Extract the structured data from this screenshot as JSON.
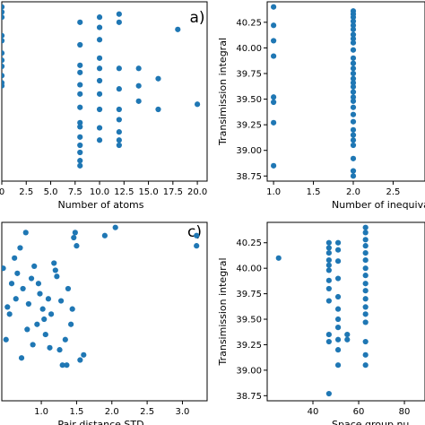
{
  "chart_data": [
    {
      "type": "scatter",
      "panel_label": "a)",
      "xlabel": "Number of atoms",
      "ylabel": "",
      "xlim": [
        0,
        21
      ],
      "ylim": [
        38.7,
        40.45
      ],
      "xticks": [
        "0",
        "2.5",
        "5.0",
        "7.5",
        "10.0",
        "12.5",
        "15.0",
        "17.5",
        "20.0"
      ],
      "yticks": [],
      "marker_color": "#1f77b4",
      "x": [
        0,
        0,
        0,
        0,
        0,
        0,
        0,
        0,
        0,
        0,
        0,
        8,
        8,
        8,
        8,
        8,
        8,
        8,
        8,
        8,
        8,
        8,
        8,
        8,
        8,
        10,
        10,
        10,
        10,
        10,
        10,
        10,
        10,
        10,
        10,
        12,
        12,
        12,
        12,
        12,
        12,
        12,
        12,
        12,
        14,
        14,
        14,
        16,
        16,
        18,
        20
      ],
      "y": [
        40.4,
        40.35,
        40.3,
        40.12,
        40.07,
        39.95,
        39.88,
        39.82,
        39.73,
        39.66,
        39.63,
        40.25,
        40.03,
        39.83,
        39.76,
        39.64,
        39.55,
        39.42,
        39.27,
        39.23,
        39.13,
        39.05,
        38.98,
        38.85,
        38.9,
        40.3,
        40.2,
        40.08,
        39.9,
        39.8,
        39.68,
        39.55,
        39.4,
        39.22,
        39.1,
        40.33,
        40.25,
        39.8,
        39.6,
        39.4,
        39.3,
        39.18,
        39.1,
        39.05,
        39.8,
        39.63,
        39.48,
        39.7,
        39.4,
        40.18,
        39.45
      ]
    },
    {
      "type": "scatter",
      "panel_label": "",
      "xlabel": "Number of inequival",
      "ylabel": "Transimission integral",
      "xlim": [
        0.92,
        2.9
      ],
      "ylim": [
        38.7,
        40.45
      ],
      "xticks": [
        "1.0",
        "1.5",
        "2.0",
        "2.5"
      ],
      "yticks": [
        "38.75",
        "39.00",
        "39.25",
        "39.50",
        "39.75",
        "40.00",
        "40.25"
      ],
      "marker_color": "#1f77b4",
      "x": [
        1,
        1,
        1,
        1,
        1,
        1,
        1,
        1,
        2,
        2,
        2,
        2,
        2,
        2,
        2,
        2,
        2,
        2,
        2,
        2,
        2,
        2,
        2,
        2,
        2,
        2,
        2,
        2,
        2,
        2,
        2,
        2,
        2,
        2,
        2,
        2,
        2,
        2
      ],
      "y": [
        40.4,
        40.22,
        40.07,
        39.92,
        39.52,
        39.47,
        39.27,
        38.85,
        40.36,
        40.33,
        40.3,
        40.26,
        40.22,
        40.18,
        40.13,
        40.09,
        40.05,
        39.98,
        39.9,
        39.85,
        39.8,
        39.75,
        39.7,
        39.66,
        39.62,
        39.57,
        39.52,
        39.48,
        39.42,
        39.35,
        39.28,
        39.2,
        39.15,
        39.1,
        39.05,
        38.92,
        38.8,
        38.75
      ]
    },
    {
      "type": "scatter",
      "panel_label": "c)",
      "xlabel": "Pair distance STD",
      "ylabel": "",
      "xlim": [
        0.44,
        3.35
      ],
      "ylim": [
        38.7,
        40.45
      ],
      "xticks": [
        "1.0",
        "1.5",
        "2.0",
        "2.5",
        "3.0"
      ],
      "yticks": [],
      "marker_color": "#1f77b4",
      "x": [
        0.46,
        0.52,
        0.58,
        0.62,
        0.66,
        0.7,
        0.74,
        0.78,
        0.82,
        0.86,
        0.9,
        0.94,
        0.98,
        1.02,
        1.06,
        1.1,
        1.14,
        1.18,
        1.22,
        1.26,
        1.3,
        1.34,
        1.38,
        1.42,
        1.46,
        1.5,
        1.55,
        1.6,
        0.5,
        0.55,
        0.64,
        0.72,
        0.8,
        0.88,
        0.96,
        1.04,
        1.12,
        1.2,
        1.28,
        1.36,
        1.44,
        1.48,
        1.9,
        2.05,
        3.2,
        3.2
      ],
      "y": [
        40.0,
        39.62,
        39.85,
        40.1,
        39.95,
        40.2,
        39.8,
        40.35,
        39.65,
        39.9,
        40.02,
        39.45,
        39.75,
        39.6,
        39.35,
        39.7,
        39.55,
        40.05,
        39.92,
        39.2,
        39.05,
        39.3,
        39.8,
        39.45,
        40.3,
        40.22,
        39.1,
        39.15,
        39.3,
        39.55,
        39.7,
        39.12,
        39.4,
        39.25,
        39.85,
        39.5,
        39.22,
        39.98,
        39.68,
        39.05,
        39.6,
        40.35,
        40.32,
        40.4,
        40.32,
        40.22
      ]
    },
    {
      "type": "scatter",
      "panel_label": "",
      "xlabel": "Space group nu",
      "ylabel": "Transimission integral",
      "xlim": [
        20,
        89
      ],
      "ylim": [
        38.7,
        40.45
      ],
      "xticks": [
        "40",
        "60",
        "80"
      ],
      "yticks": [
        "38.75",
        "39.00",
        "39.25",
        "39.50",
        "39.75",
        "40.00",
        "40.25"
      ],
      "marker_color": "#1f77b4",
      "x": [
        25,
        47,
        47,
        47,
        47,
        47,
        47,
        47,
        47,
        47,
        47,
        47,
        47,
        51,
        51,
        51,
        51,
        51,
        51,
        51,
        51,
        51,
        51,
        51,
        55,
        55,
        63,
        63,
        63,
        63,
        63,
        63,
        63,
        63,
        63,
        63,
        63,
        63,
        63,
        63,
        63,
        63,
        63
      ],
      "y": [
        40.1,
        40.25,
        40.2,
        40.15,
        40.08,
        40.03,
        39.98,
        39.88,
        39.8,
        39.68,
        39.35,
        39.28,
        38.77,
        40.25,
        40.18,
        39.9,
        39.72,
        39.6,
        39.5,
        39.42,
        39.3,
        39.2,
        39.05,
        40.07,
        39.35,
        39.3,
        40.4,
        40.35,
        40.28,
        40.22,
        40.15,
        40.08,
        40.0,
        39.93,
        39.85,
        39.78,
        39.7,
        39.62,
        39.55,
        39.47,
        39.28,
        39.15,
        39.05
      ]
    }
  ]
}
